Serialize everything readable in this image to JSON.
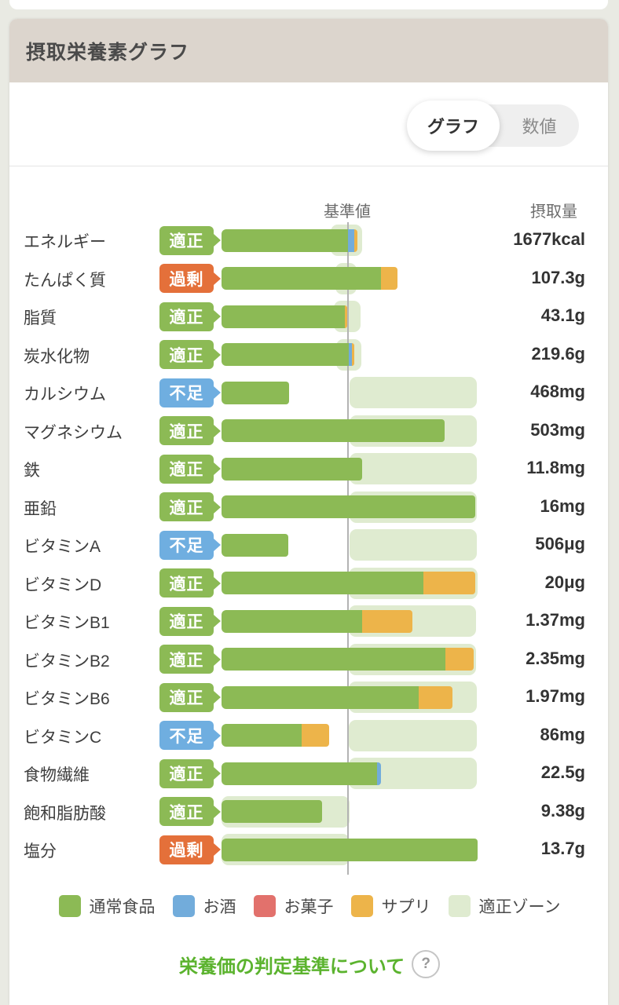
{
  "header": {
    "title": "摂取栄養素グラフ"
  },
  "toggle": {
    "graph_label": "グラフ",
    "numeric_label": "数値",
    "selected": "グラフ"
  },
  "chart": {
    "type": "bar",
    "reference_label": "基準値",
    "intake_label": "摂取量",
    "rows": [
      {
        "name": "エネルギー",
        "status": "適正",
        "status_type": "ok",
        "value": "1677kcal",
        "zone": [
          421,
          461
        ],
        "segments": [
          {
            "type": "normal",
            "from": 282,
            "to": 443
          },
          {
            "type": "alcohol",
            "from": 443,
            "to": 451
          },
          {
            "type": "supplement",
            "from": 451,
            "to": 455
          }
        ]
      },
      {
        "name": "たんぱく質",
        "status": "過剰",
        "status_type": "over",
        "value": "107.3g",
        "zone": [
          427,
          454
        ],
        "segments": [
          {
            "type": "normal",
            "from": 282,
            "to": 485
          },
          {
            "type": "supplement",
            "from": 485,
            "to": 506
          }
        ]
      },
      {
        "name": "脂質",
        "status": "適正",
        "status_type": "ok",
        "value": "43.1g",
        "zone": [
          425,
          459
        ],
        "segments": [
          {
            "type": "normal",
            "from": 282,
            "to": 439
          },
          {
            "type": "supplement",
            "from": 439,
            "to": 442
          }
        ]
      },
      {
        "name": "炭水化物",
        "status": "適正",
        "status_type": "ok",
        "value": "219.6g",
        "zone": [
          428,
          460
        ],
        "segments": [
          {
            "type": "normal",
            "from": 282,
            "to": 444
          },
          {
            "type": "alcohol",
            "from": 444,
            "to": 448
          },
          {
            "type": "supplement",
            "from": 448,
            "to": 451
          }
        ]
      },
      {
        "name": "カルシウム",
        "status": "不足",
        "status_type": "low",
        "value": "468mg",
        "zone": [
          445,
          607
        ],
        "segments": [
          {
            "type": "normal",
            "from": 282,
            "to": 368
          }
        ]
      },
      {
        "name": "マグネシウム",
        "status": "適正",
        "status_type": "ok",
        "value": "503mg",
        "zone": [
          445,
          607
        ],
        "segments": [
          {
            "type": "normal",
            "from": 282,
            "to": 566
          }
        ]
      },
      {
        "name": "鉄",
        "status": "適正",
        "status_type": "ok",
        "value": "11.8mg",
        "zone": [
          445,
          607
        ],
        "segments": [
          {
            "type": "normal",
            "from": 282,
            "to": 461
          }
        ]
      },
      {
        "name": "亜鉛",
        "status": "適正",
        "status_type": "ok",
        "value": "16mg",
        "zone": [
          445,
          607
        ],
        "segments": [
          {
            "type": "normal",
            "from": 282,
            "to": 605
          }
        ]
      },
      {
        "name": "ビタミンA",
        "status": "不足",
        "status_type": "low",
        "value": "506μg",
        "zone": [
          445,
          607
        ],
        "segments": [
          {
            "type": "normal",
            "from": 282,
            "to": 367
          }
        ]
      },
      {
        "name": "ビタミンD",
        "status": "適正",
        "status_type": "ok",
        "value": "20μg",
        "zone": [
          444,
          608
        ],
        "segments": [
          {
            "type": "normal",
            "from": 282,
            "to": 539
          },
          {
            "type": "supplement",
            "from": 539,
            "to": 605
          }
        ]
      },
      {
        "name": "ビタミンB1",
        "status": "適正",
        "status_type": "ok",
        "value": "1.37mg",
        "zone": [
          444,
          606
        ],
        "segments": [
          {
            "type": "normal",
            "from": 282,
            "to": 461
          },
          {
            "type": "supplement",
            "from": 461,
            "to": 525
          }
        ]
      },
      {
        "name": "ビタミンB2",
        "status": "適正",
        "status_type": "ok",
        "value": "2.35mg",
        "zone": [
          444,
          606
        ],
        "segments": [
          {
            "type": "normal",
            "from": 282,
            "to": 567
          },
          {
            "type": "supplement",
            "from": 567,
            "to": 603
          }
        ]
      },
      {
        "name": "ビタミンB6",
        "status": "適正",
        "status_type": "ok",
        "value": "1.97mg",
        "zone": [
          444,
          607
        ],
        "segments": [
          {
            "type": "normal",
            "from": 282,
            "to": 533
          },
          {
            "type": "supplement",
            "from": 533,
            "to": 576
          }
        ]
      },
      {
        "name": "ビタミンC",
        "status": "不足",
        "status_type": "low",
        "value": "86mg",
        "zone": [
          444,
          607
        ],
        "segments": [
          {
            "type": "normal",
            "from": 282,
            "to": 384
          },
          {
            "type": "supplement",
            "from": 384,
            "to": 419
          }
        ]
      },
      {
        "name": "食物繊維",
        "status": "適正",
        "status_type": "ok",
        "value": "22.5g",
        "zone": [
          444,
          607
        ],
        "segments": [
          {
            "type": "normal",
            "from": 282,
            "to": 480
          },
          {
            "type": "alcohol",
            "from": 480,
            "to": 485
          }
        ]
      },
      {
        "name": "飽和脂肪酸",
        "status": "適正",
        "status_type": "ok",
        "value": "9.38g",
        "zone": [
          282,
          445
        ],
        "segments": [
          {
            "type": "normal",
            "from": 282,
            "to": 410
          }
        ]
      },
      {
        "name": "塩分",
        "status": "過剰",
        "status_type": "over",
        "value": "13.7g",
        "zone": [
          282,
          445
        ],
        "segments": [
          {
            "type": "normal",
            "from": 282,
            "to": 608
          }
        ]
      }
    ]
  },
  "legend": {
    "items": [
      {
        "label": "通常食品",
        "type": "normal"
      },
      {
        "label": "お酒",
        "type": "alcohol"
      },
      {
        "label": "お菓子",
        "type": "sweets"
      },
      {
        "label": "サプリ",
        "type": "supplement"
      },
      {
        "label": "適正ゾーン",
        "type": "zone"
      }
    ]
  },
  "footer": {
    "link": "栄養価の判定基準について",
    "help_icon": "?"
  },
  "colors": {
    "normal": "#8CBA55",
    "alcohol": "#72ACDB",
    "sweets": "#E2716C",
    "supplement": "#EDB44A",
    "zone": "#DFEBD0",
    "badge_ok": "#8CBA55",
    "badge_over": "#E4703A",
    "badge_low": "#6FAEE0",
    "ref_line": "#B3B3B3",
    "header_bg": "#DCD5CD",
    "link_green": "#5BB32E"
  }
}
